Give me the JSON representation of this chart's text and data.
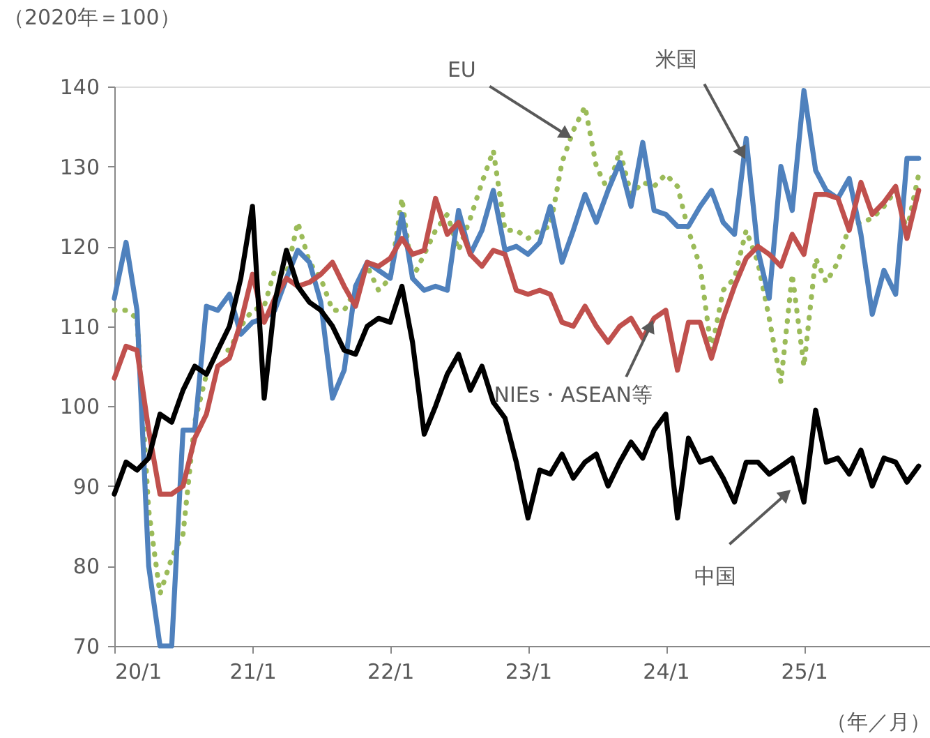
{
  "chart_data": {
    "type": "line",
    "ylabel": "（2020年＝100）",
    "xlabel": "（年／月）",
    "x": [
      "2020-01",
      "2020-02",
      "2020-03",
      "2020-04",
      "2020-05",
      "2020-06",
      "2020-07",
      "2020-08",
      "2020-09",
      "2020-10",
      "2020-11",
      "2020-12",
      "2021-01",
      "2021-02",
      "2021-03",
      "2021-04",
      "2021-05",
      "2021-06",
      "2021-07",
      "2021-08",
      "2021-09",
      "2021-10",
      "2021-11",
      "2021-12",
      "2022-01",
      "2022-02",
      "2022-03",
      "2022-04",
      "2022-05",
      "2022-06",
      "2022-07",
      "2022-08",
      "2022-09",
      "2022-10",
      "2022-11",
      "2022-12",
      "2023-01",
      "2023-02",
      "2023-03",
      "2023-04",
      "2023-05",
      "2023-06",
      "2023-07",
      "2023-08",
      "2023-09",
      "2023-10",
      "2023-11",
      "2023-12",
      "2024-01",
      "2024-02",
      "2024-03",
      "2024-04",
      "2024-05",
      "2024-06",
      "2024-07",
      "2024-08",
      "2024-09",
      "2024-10",
      "2024-11",
      "2024-12",
      "2025-01",
      "2025-02",
      "2025-03",
      "2025-04",
      "2025-05",
      "2025-06",
      "2025-07",
      "2025-08",
      "2025-09",
      "2025-10",
      "2025-11"
    ],
    "series": [
      {
        "color": "#9bbb59",
        "line_style": "dotted",
        "values": [
          112,
          112,
          111,
          87,
          76.5,
          81,
          84,
          98,
          104,
          107,
          107,
          110,
          112,
          112.5,
          117,
          116.5,
          123,
          118,
          116,
          112,
          112,
          114.5,
          117.5,
          114.5,
          116,
          126,
          116,
          119,
          122,
          124,
          119.5,
          123.5,
          128,
          132,
          122,
          122,
          121,
          122,
          122.5,
          130.5,
          134.5,
          137.5,
          130,
          127,
          132,
          126.5,
          128,
          127.5,
          129,
          127.5,
          122,
          117.5,
          107,
          114.5,
          116,
          122,
          118,
          111,
          103,
          116.5,
          105,
          118.5,
          115.5,
          118,
          122.5,
          123,
          123.5,
          125,
          127,
          122,
          129
        ]
      },
      {
        "color": "#4f81bd",
        "line_style": "solid",
        "values": [
          113.5,
          120.5,
          112,
          80,
          70,
          70,
          97,
          97,
          112.5,
          112,
          114,
          109,
          110.5,
          111,
          112,
          116,
          119.5,
          118,
          113,
          101,
          104.5,
          115,
          118,
          117,
          116,
          124,
          116,
          114.5,
          115,
          114.5,
          124.5,
          119,
          122,
          127,
          119.5,
          120,
          119,
          120.5,
          125,
          118,
          122,
          126.5,
          123,
          127,
          130.5,
          125,
          133,
          124.5,
          124,
          122.5,
          122.5,
          125,
          127,
          123,
          121.5,
          133.5,
          119.5,
          113.5,
          130,
          124.5,
          139.5,
          129.5,
          127,
          126,
          128.5,
          121.5,
          111.5,
          117,
          114,
          131,
          131
        ]
      },
      {
        "color": "#c0504d",
        "line_style": "solid",
        "values": [
          103.5,
          107.5,
          107,
          97,
          89,
          89,
          90,
          96,
          99,
          105,
          106,
          110.5,
          116.5,
          110.5,
          113.5,
          116,
          115,
          115.5,
          116.5,
          118,
          115,
          112.5,
          118,
          117.5,
          118.5,
          121,
          119,
          119.5,
          126,
          121.5,
          123,
          119,
          117.5,
          119.5,
          119,
          114.5,
          114,
          114.5,
          114,
          110.5,
          110,
          112.5,
          110,
          108,
          110,
          111,
          108.5,
          111,
          112,
          104.5,
          110.5,
          110.5,
          106,
          111,
          115,
          118.5,
          120,
          119,
          117.5,
          121.5,
          119,
          126.5,
          126.5,
          126,
          122,
          128,
          124,
          125.5,
          127.5,
          121,
          127
        ]
      },
      {
        "color": "#000000",
        "line_style": "solid",
        "values": [
          89,
          93,
          92,
          93.5,
          99,
          98,
          102,
          105,
          104,
          107,
          110,
          116,
          125,
          101,
          113,
          119.5,
          115,
          113,
          112,
          110,
          107,
          106.5,
          110,
          111,
          110.5,
          115,
          108,
          96.5,
          100,
          104,
          106.5,
          102,
          105,
          100.5,
          98.5,
          93,
          86,
          92,
          91.5,
          94,
          91,
          93,
          94,
          90,
          93,
          95.5,
          93.5,
          97,
          99,
          86,
          96,
          93,
          93.5,
          91,
          88,
          93,
          93,
          91.5,
          92.5,
          93.5,
          88,
          99.5,
          93,
          93.5,
          91.5,
          94.5,
          90,
          93.5,
          93,
          90.5,
          92.5
        ]
      }
    ],
    "xlim": [
      "2020-01",
      "2025-12"
    ],
    "xticks": [
      {
        "value": "2020-01",
        "label": "20/1"
      },
      {
        "value": "2021-01",
        "label": "21/1"
      },
      {
        "value": "2022-01",
        "label": "22/1"
      },
      {
        "value": "2023-01",
        "label": "23/1"
      },
      {
        "value": "2024-01",
        "label": "24/1"
      },
      {
        "value": "2025-01",
        "label": "25/1"
      }
    ],
    "ylim": [
      70,
      140
    ],
    "yticks": [
      70,
      80,
      90,
      100,
      110,
      120,
      130,
      140
    ],
    "grid": false,
    "marker": "none",
    "annotations": [
      {
        "text": "EU",
        "x": "2023-05",
        "y": 133.4
      },
      {
        "text": "米国",
        "x": "2024-08",
        "y": 130.7
      },
      {
        "text": "NIEs・ASEAN等",
        "x": "2023-12",
        "y": 111
      },
      {
        "text": "中国",
        "x": "2024-12",
        "y": 89.7
      }
    ]
  }
}
